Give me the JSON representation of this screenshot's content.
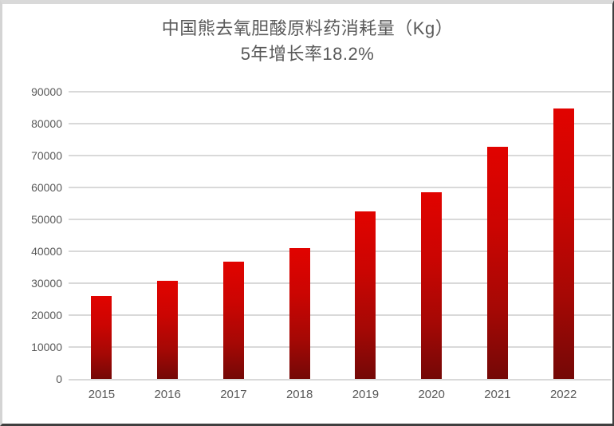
{
  "title": {
    "line1": "中国熊去氧胆酸原料药消耗量（Kg）",
    "line2": "5年增长率18.2%"
  },
  "chart_data": {
    "type": "bar",
    "title": "中国熊去氧胆酸原料药消耗量（Kg） 5年增长率18.2%",
    "categories": [
      "2015",
      "2016",
      "2017",
      "2018",
      "2019",
      "2020",
      "2021",
      "2022"
    ],
    "values": [
      26000,
      30700,
      36700,
      41100,
      52600,
      58400,
      72700,
      84800
    ],
    "xlabel": "",
    "ylabel": "",
    "ylim": [
      0,
      90000
    ],
    "ytick_step": 10000,
    "yticks": [
      0,
      10000,
      20000,
      30000,
      40000,
      50000,
      60000,
      70000,
      80000,
      90000
    ],
    "grid": true,
    "legend_position": "none",
    "colors": {
      "bar_gradient_top": "#e10300",
      "bar_gradient_bottom": "#740806",
      "gridline": "#d9d9d9",
      "axis_line": "#d9d9d9",
      "title_text": "#595959",
      "tick_text": "#595959",
      "background": "#ffffff"
    }
  }
}
